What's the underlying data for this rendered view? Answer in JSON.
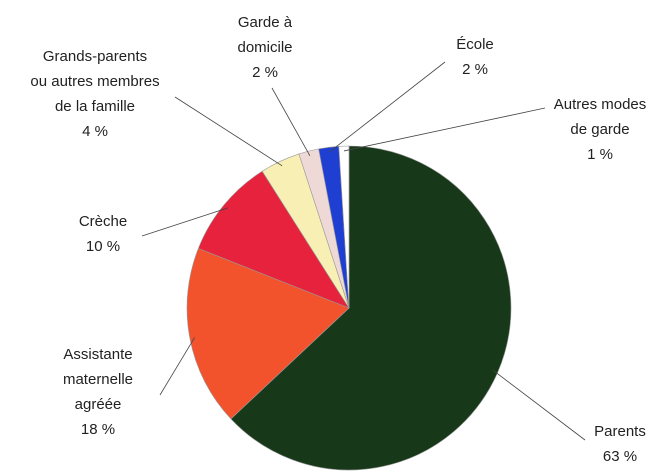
{
  "chart_data": {
    "type": "pie",
    "categories": [
      [
        "Parents"
      ],
      [
        "Assistante",
        "maternelle",
        "agréée"
      ],
      [
        "Crèche"
      ],
      [
        "Grands-parents",
        "ou autres membres",
        "de la famille"
      ],
      [
        "Garde à",
        "domicile"
      ],
      [
        "École"
      ],
      [
        "Autres modes",
        "de garde"
      ]
    ],
    "values": [
      63,
      18,
      10,
      4,
      2,
      2,
      1
    ],
    "value_labels": [
      "63 %",
      "18 %",
      "10 %",
      "4 %",
      "2 %",
      "2 %",
      "1 %"
    ],
    "colors": [
      "#17391a",
      "#f2532c",
      "#e6223c",
      "#f8efb4",
      "#efd9d6",
      "#1f3fd2",
      "#ffffff"
    ]
  }
}
